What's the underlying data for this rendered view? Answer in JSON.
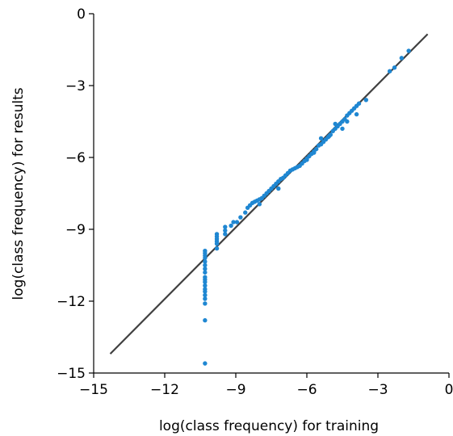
{
  "chart_data": {
    "type": "scatter",
    "title": "",
    "xlabel": "log(class frequency) for training",
    "ylabel": "log(class frequency) for results",
    "xlim": [
      -15,
      0
    ],
    "ylim": [
      -15,
      0
    ],
    "xticks": [
      -15,
      -12,
      -9,
      -6,
      -3,
      0
    ],
    "yticks": [
      0,
      -3,
      -6,
      -9,
      -12,
      -15
    ],
    "xtick_labels": [
      "−15",
      "−12",
      "−9",
      "−6",
      "−3",
      "0"
    ],
    "ytick_labels": [
      "0",
      "−3",
      "−6",
      "−9",
      "−12",
      "−15"
    ],
    "grid": false,
    "point_color": "#1f87d2",
    "line_color": "#404040",
    "reference_line": {
      "x": [
        -14.3,
        -0.9
      ],
      "y": [
        -14.2,
        -0.85
      ]
    },
    "points": {
      "x": [
        -10.3,
        -10.3,
        -10.3,
        -10.3,
        -10.3,
        -10.3,
        -10.3,
        -10.3,
        -10.3,
        -10.3,
        -10.3,
        -10.3,
        -10.3,
        -10.3,
        -10.3,
        -10.3,
        -10.3,
        -10.3,
        -10.3,
        -9.8,
        -9.8,
        -9.8,
        -9.8,
        -9.8,
        -9.8,
        -9.45,
        -9.45,
        -9.45,
        -9.2,
        -9.1,
        -8.95,
        -8.8,
        -8.6,
        -8.5,
        -8.4,
        -8.3,
        -8.2,
        -8.1,
        -8.0,
        -7.9,
        -7.8,
        -7.7,
        -7.6,
        -7.5,
        -7.4,
        -7.3,
        -7.2,
        -7.1,
        -7.0,
        -6.9,
        -6.8,
        -6.7,
        -6.6,
        -6.5,
        -6.4,
        -6.3,
        -6.2,
        -6.1,
        -6.0,
        -5.9,
        -5.8,
        -5.7,
        -5.6,
        -5.5,
        -5.4,
        -5.3,
        -5.2,
        -5.1,
        -5.0,
        -4.9,
        -4.8,
        -4.7,
        -4.6,
        -4.5,
        -4.4,
        -4.3,
        -4.2,
        -4.1,
        -4.0,
        -3.9,
        -3.8,
        -5.4,
        -5.05,
        -4.8,
        -4.5,
        -4.3,
        -3.9,
        -3.5,
        -2.5,
        -2.3,
        -2.0,
        -1.7,
        -5.7,
        -6.0,
        -7.2,
        -8.0
      ],
      "y": [
        -9.9,
        -10.0,
        -10.1,
        -10.2,
        -10.35,
        -10.5,
        -10.65,
        -10.8,
        -11.0,
        -11.1,
        -11.2,
        -11.35,
        -11.5,
        -11.6,
        -11.75,
        -11.9,
        -12.1,
        -12.8,
        -14.6,
        -9.2,
        -9.3,
        -9.4,
        -9.5,
        -9.6,
        -9.8,
        -8.9,
        -9.05,
        -9.2,
        -8.85,
        -8.7,
        -8.7,
        -8.5,
        -8.3,
        -8.1,
        -8.0,
        -7.9,
        -7.85,
        -7.8,
        -7.75,
        -7.7,
        -7.6,
        -7.5,
        -7.4,
        -7.3,
        -7.2,
        -7.1,
        -7.0,
        -6.9,
        -6.85,
        -6.75,
        -6.65,
        -6.55,
        -6.5,
        -6.45,
        -6.4,
        -6.35,
        -6.25,
        -6.15,
        -6.05,
        -5.95,
        -5.85,
        -5.75,
        -5.65,
        -5.5,
        -5.45,
        -5.35,
        -5.25,
        -5.15,
        -5.05,
        -4.9,
        -4.8,
        -4.7,
        -4.6,
        -4.5,
        -4.4,
        -4.25,
        -4.15,
        -4.05,
        -3.95,
        -3.85,
        -3.75,
        -5.2,
        -5.1,
        -4.6,
        -4.8,
        -4.5,
        -4.2,
        -3.6,
        -2.4,
        -2.25,
        -1.85,
        -1.55,
        -5.8,
        -6.1,
        -7.3,
        -7.95
      ]
    }
  }
}
